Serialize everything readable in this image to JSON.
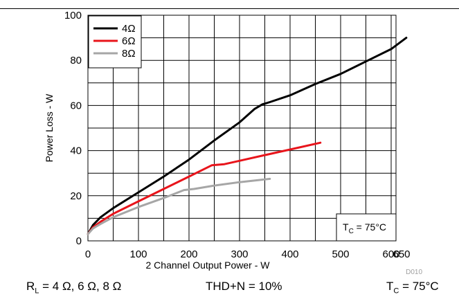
{
  "chart_data": {
    "type": "line",
    "xlabel": "2 Channel Output Power - W",
    "ylabel": "Power Loss - W",
    "xlim": [
      0,
      650
    ],
    "ylim": [
      0,
      100
    ],
    "x_ticks": [
      0,
      100,
      200,
      300,
      400,
      500,
      600,
      650
    ],
    "y_ticks": [
      0,
      20,
      40,
      60,
      80,
      100
    ],
    "grid": true,
    "legend_position": "top-left",
    "series": [
      {
        "name": "4Ω",
        "color": "#000000",
        "points": [
          [
            0,
            3
          ],
          [
            10,
            7
          ],
          [
            25,
            10.5
          ],
          [
            50,
            14.5
          ],
          [
            100,
            21.5
          ],
          [
            150,
            28.5
          ],
          [
            200,
            36
          ],
          [
            250,
            44.5
          ],
          [
            300,
            52.5
          ],
          [
            330,
            58.5
          ],
          [
            345,
            60.5
          ],
          [
            360,
            61.5
          ],
          [
            400,
            64.5
          ],
          [
            450,
            69.5
          ],
          [
            500,
            74
          ],
          [
            550,
            79.5
          ],
          [
            600,
            85
          ],
          [
            630,
            90
          ]
        ]
      },
      {
        "name": "6Ω",
        "color": "#e8141b",
        "points": [
          [
            0,
            3
          ],
          [
            10,
            6
          ],
          [
            25,
            8.5
          ],
          [
            50,
            12
          ],
          [
            100,
            17.5
          ],
          [
            150,
            23
          ],
          [
            200,
            28.5
          ],
          [
            245,
            33.5
          ],
          [
            270,
            34
          ],
          [
            300,
            35.5
          ],
          [
            350,
            38
          ],
          [
            400,
            40.5
          ],
          [
            460,
            43.5
          ]
        ]
      },
      {
        "name": "8Ω",
        "color": "#a6a6a6",
        "points": [
          [
            0,
            3
          ],
          [
            10,
            5.5
          ],
          [
            25,
            7.5
          ],
          [
            50,
            10.5
          ],
          [
            100,
            15
          ],
          [
            150,
            19
          ],
          [
            190,
            22.5
          ],
          [
            210,
            23
          ],
          [
            250,
            24.5
          ],
          [
            300,
            26
          ],
          [
            360,
            27.5
          ]
        ]
      }
    ],
    "annotation": "T_C = 75°C",
    "footer_code": "D010"
  },
  "conditions": {
    "rl_text": "R",
    "rl_sub": "L",
    "rl_values": " = 4 Ω, 6 Ω, 8 Ω",
    "thd": "THD+N = 10%",
    "tc_text": "T",
    "tc_sub": "C",
    "tc_value": " = 75°C"
  },
  "colors": {
    "accent_4ohm": "#000000",
    "accent_6ohm": "#e8141b",
    "accent_8ohm": "#a6a6a6"
  }
}
